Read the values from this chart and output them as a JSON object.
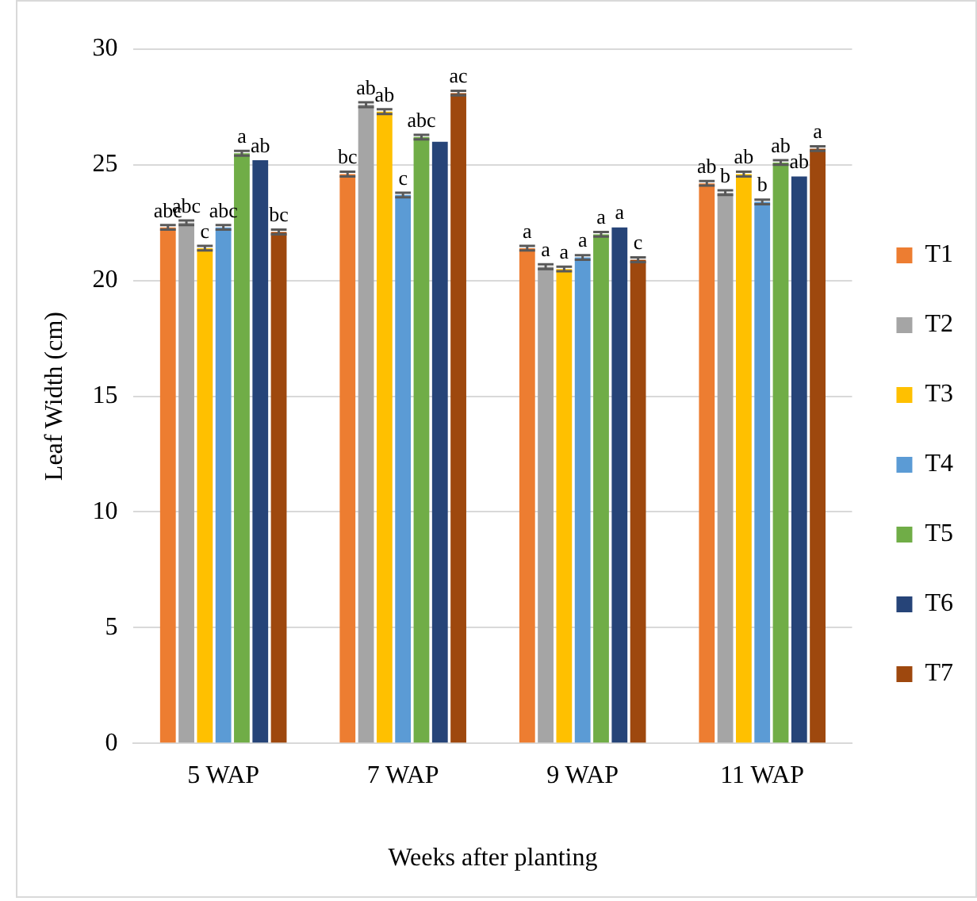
{
  "chart_data": {
    "type": "bar",
    "xlabel": "Weeks after planting",
    "ylabel": "Leaf Width (cm)",
    "categories": [
      "5 WAP",
      "7 WAP",
      "9 WAP",
      "11 WAP"
    ],
    "series": [
      {
        "name": "T1",
        "color": "#ed7d31",
        "values": [
          22.3,
          24.6,
          21.4,
          24.2
        ],
        "errors": [
          0.1,
          0.1,
          0.1,
          0.1
        ],
        "value_labels": [
          "abc",
          "bc",
          "a",
          "ab"
        ]
      },
      {
        "name": "T2",
        "color": "#a5a5a5",
        "values": [
          22.5,
          27.6,
          20.6,
          23.8
        ],
        "errors": [
          0.1,
          0.1,
          0.1,
          0.1
        ],
        "value_labels": [
          "abc",
          "ab",
          "a",
          "b"
        ]
      },
      {
        "name": "T3",
        "color": "#ffc000",
        "values": [
          21.4,
          27.3,
          20.5,
          24.6
        ],
        "errors": [
          0.1,
          0.1,
          0.1,
          0.1
        ],
        "value_labels": [
          "c",
          "ab",
          "a",
          "ab"
        ]
      },
      {
        "name": "T4",
        "color": "#5b9bd5",
        "values": [
          22.3,
          23.7,
          21.0,
          23.4
        ],
        "errors": [
          0.1,
          0.1,
          0.1,
          0.1
        ],
        "value_labels": [
          "abc",
          "c",
          "a",
          "b"
        ]
      },
      {
        "name": "T5",
        "color": "#70ad47",
        "values": [
          25.5,
          26.2,
          22.0,
          25.1
        ],
        "errors": [
          0.1,
          0.1,
          0.1,
          0.1
        ],
        "value_labels": [
          "a",
          "abc",
          "a",
          "ab"
        ]
      },
      {
        "name": "T6",
        "color": "#264478",
        "values": [
          25.2,
          26.0,
          22.3,
          24.5
        ],
        "value_labels": [
          "ab",
          null,
          "a",
          "ab"
        ]
      },
      {
        "name": "T7",
        "color": "#9e480e",
        "values": [
          22.1,
          28.1,
          20.9,
          25.7
        ],
        "errors": [
          0.1,
          0.1,
          0.1,
          0.1
        ],
        "value_labels": [
          "bc",
          "ac",
          "c",
          "a"
        ]
      }
    ],
    "ylim": [
      0,
      30
    ],
    "yticks": [
      0,
      5,
      10,
      15,
      20,
      25,
      30
    ],
    "grid": "y",
    "legend": "right"
  }
}
